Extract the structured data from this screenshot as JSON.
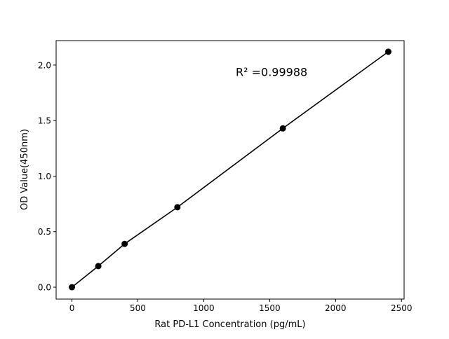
{
  "chart_data": {
    "type": "line",
    "title": "",
    "xlabel": "Rat PD-L1 Concentration (pg/mL)",
    "ylabel": "OD Value(450nm)",
    "xlim": [
      -120,
      2520
    ],
    "ylim": [
      -0.107,
      2.22
    ],
    "x_ticks": [
      0,
      500,
      1000,
      1500,
      2000,
      2500
    ],
    "y_ticks": [
      0.0,
      0.5,
      1.0,
      1.5,
      2.0
    ],
    "x_tick_labels": [
      "0",
      "500",
      "1000",
      "1500",
      "2000",
      "2500"
    ],
    "y_tick_labels": [
      "0.0",
      "0.5",
      "1.0",
      "1.5",
      "2.0"
    ],
    "grid": false,
    "series": [
      {
        "x": [
          0,
          200,
          400,
          800,
          1600,
          2400
        ],
        "y": [
          0.0,
          0.19,
          0.39,
          0.72,
          1.43,
          2.12
        ],
        "color": "#000000",
        "marker": "circle"
      }
    ],
    "annotation": {
      "text": "R² =0.99988",
      "x": 1200,
      "y": 1.92
    }
  }
}
